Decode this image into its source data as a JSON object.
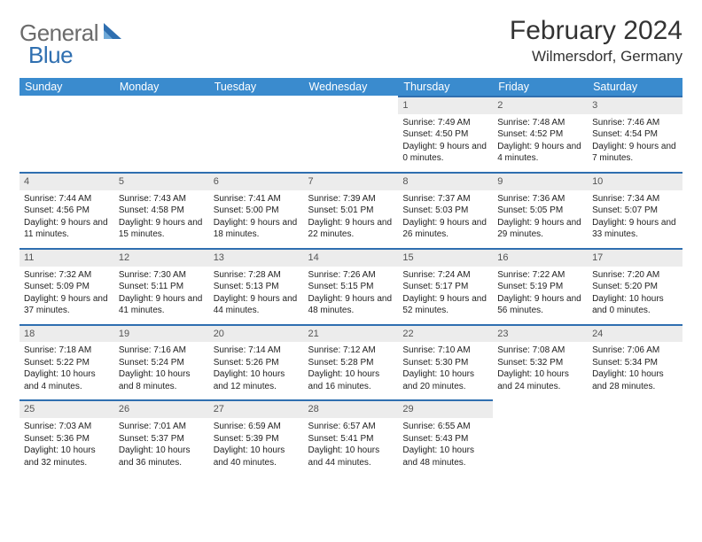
{
  "logo": {
    "text1": "General",
    "text2": "Blue"
  },
  "title": "February 2024",
  "location": "Wilmersdorf, Germany",
  "colors": {
    "header_bg": "#3a8bce",
    "row_accent": "#2f6fb0",
    "daynum_bg": "#ececec"
  },
  "weekdays": [
    "Sunday",
    "Monday",
    "Tuesday",
    "Wednesday",
    "Thursday",
    "Friday",
    "Saturday"
  ],
  "layout": {
    "first_weekday_index": 4,
    "days_in_month": 29
  },
  "days": {
    "1": {
      "sunrise": "7:49 AM",
      "sunset": "4:50 PM",
      "daylight": "9 hours and 0 minutes."
    },
    "2": {
      "sunrise": "7:48 AM",
      "sunset": "4:52 PM",
      "daylight": "9 hours and 4 minutes."
    },
    "3": {
      "sunrise": "7:46 AM",
      "sunset": "4:54 PM",
      "daylight": "9 hours and 7 minutes."
    },
    "4": {
      "sunrise": "7:44 AM",
      "sunset": "4:56 PM",
      "daylight": "9 hours and 11 minutes."
    },
    "5": {
      "sunrise": "7:43 AM",
      "sunset": "4:58 PM",
      "daylight": "9 hours and 15 minutes."
    },
    "6": {
      "sunrise": "7:41 AM",
      "sunset": "5:00 PM",
      "daylight": "9 hours and 18 minutes."
    },
    "7": {
      "sunrise": "7:39 AM",
      "sunset": "5:01 PM",
      "daylight": "9 hours and 22 minutes."
    },
    "8": {
      "sunrise": "7:37 AM",
      "sunset": "5:03 PM",
      "daylight": "9 hours and 26 minutes."
    },
    "9": {
      "sunrise": "7:36 AM",
      "sunset": "5:05 PM",
      "daylight": "9 hours and 29 minutes."
    },
    "10": {
      "sunrise": "7:34 AM",
      "sunset": "5:07 PM",
      "daylight": "9 hours and 33 minutes."
    },
    "11": {
      "sunrise": "7:32 AM",
      "sunset": "5:09 PM",
      "daylight": "9 hours and 37 minutes."
    },
    "12": {
      "sunrise": "7:30 AM",
      "sunset": "5:11 PM",
      "daylight": "9 hours and 41 minutes."
    },
    "13": {
      "sunrise": "7:28 AM",
      "sunset": "5:13 PM",
      "daylight": "9 hours and 44 minutes."
    },
    "14": {
      "sunrise": "7:26 AM",
      "sunset": "5:15 PM",
      "daylight": "9 hours and 48 minutes."
    },
    "15": {
      "sunrise": "7:24 AM",
      "sunset": "5:17 PM",
      "daylight": "9 hours and 52 minutes."
    },
    "16": {
      "sunrise": "7:22 AM",
      "sunset": "5:19 PM",
      "daylight": "9 hours and 56 minutes."
    },
    "17": {
      "sunrise": "7:20 AM",
      "sunset": "5:20 PM",
      "daylight": "10 hours and 0 minutes."
    },
    "18": {
      "sunrise": "7:18 AM",
      "sunset": "5:22 PM",
      "daylight": "10 hours and 4 minutes."
    },
    "19": {
      "sunrise": "7:16 AM",
      "sunset": "5:24 PM",
      "daylight": "10 hours and 8 minutes."
    },
    "20": {
      "sunrise": "7:14 AM",
      "sunset": "5:26 PM",
      "daylight": "10 hours and 12 minutes."
    },
    "21": {
      "sunrise": "7:12 AM",
      "sunset": "5:28 PM",
      "daylight": "10 hours and 16 minutes."
    },
    "22": {
      "sunrise": "7:10 AM",
      "sunset": "5:30 PM",
      "daylight": "10 hours and 20 minutes."
    },
    "23": {
      "sunrise": "7:08 AM",
      "sunset": "5:32 PM",
      "daylight": "10 hours and 24 minutes."
    },
    "24": {
      "sunrise": "7:06 AM",
      "sunset": "5:34 PM",
      "daylight": "10 hours and 28 minutes."
    },
    "25": {
      "sunrise": "7:03 AM",
      "sunset": "5:36 PM",
      "daylight": "10 hours and 32 minutes."
    },
    "26": {
      "sunrise": "7:01 AM",
      "sunset": "5:37 PM",
      "daylight": "10 hours and 36 minutes."
    },
    "27": {
      "sunrise": "6:59 AM",
      "sunset": "5:39 PM",
      "daylight": "10 hours and 40 minutes."
    },
    "28": {
      "sunrise": "6:57 AM",
      "sunset": "5:41 PM",
      "daylight": "10 hours and 44 minutes."
    },
    "29": {
      "sunrise": "6:55 AM",
      "sunset": "5:43 PM",
      "daylight": "10 hours and 48 minutes."
    }
  },
  "labels": {
    "sunrise": "Sunrise: ",
    "sunset": "Sunset: ",
    "daylight": "Daylight: "
  }
}
